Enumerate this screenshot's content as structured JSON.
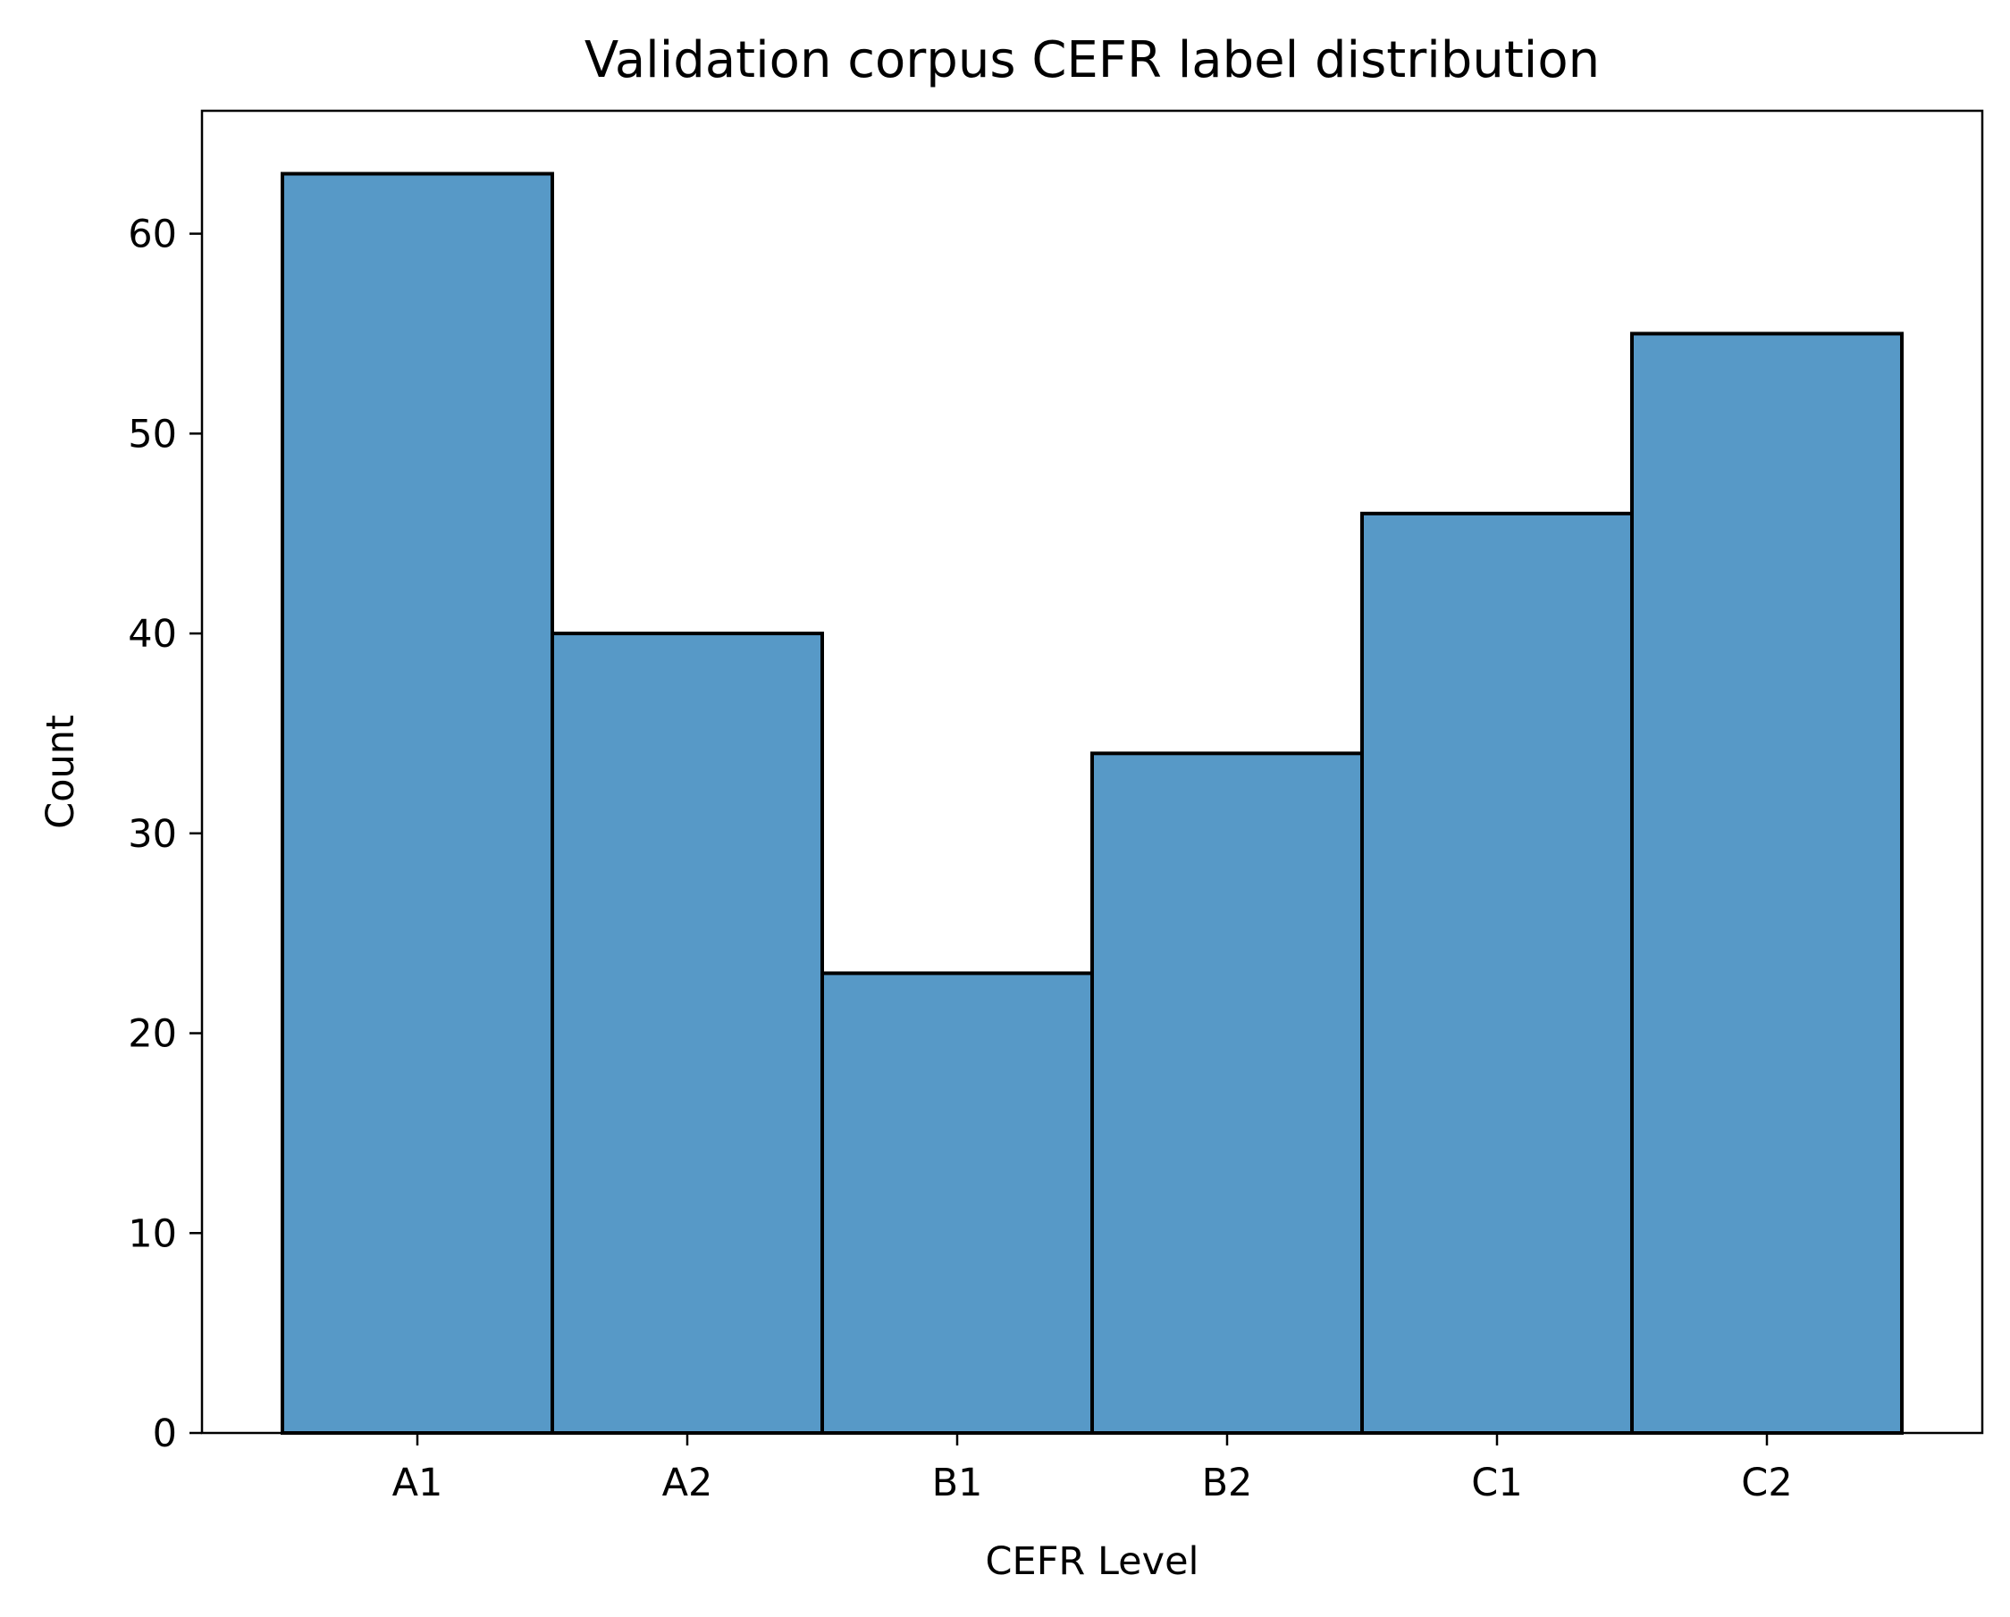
{
  "chart_data": {
    "type": "bar",
    "title": "Validation corpus CEFR label distribution",
    "xlabel": "CEFR Level",
    "ylabel": "Count",
    "categories": [
      "A1",
      "A2",
      "B1",
      "B2",
      "C1",
      "C2"
    ],
    "values": [
      63,
      40,
      23,
      34,
      46,
      55
    ],
    "ylim": [
      0,
      66.15
    ],
    "yticks": [
      0,
      10,
      20,
      30,
      40,
      50,
      60
    ],
    "grid": false,
    "colors": {
      "bar_fill": "#5799c7",
      "bar_edge": "#000000"
    }
  }
}
